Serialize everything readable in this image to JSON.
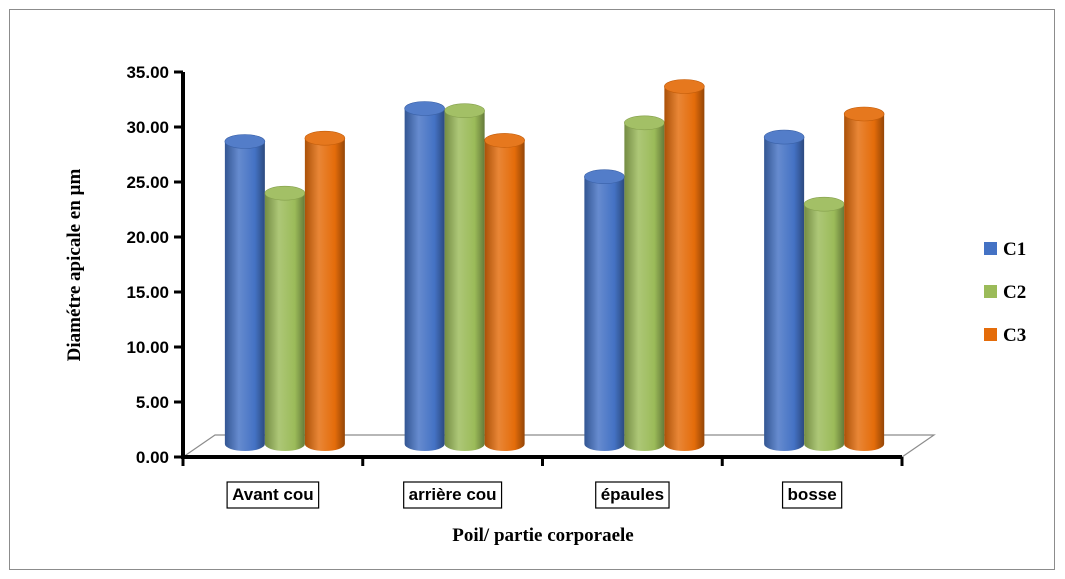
{
  "chart_data": {
    "type": "bar",
    "categories": [
      "Avant cou",
      "arrière cou",
      "épaules",
      "bosse"
    ],
    "series": [
      {
        "name": "C1",
        "values": [
          27.5,
          30.5,
          24.3,
          27.9
        ],
        "color": "#4472C4"
      },
      {
        "name": "C2",
        "values": [
          22.8,
          30.3,
          29.2,
          21.8
        ],
        "color": "#9BBB59"
      },
      {
        "name": "C3",
        "values": [
          27.8,
          27.6,
          32.5,
          30.0
        ],
        "color": "#E46C0A"
      }
    ],
    "xlabel": "Poil/ partie corporaele",
    "ylabel": "Diamétre apicale en µm",
    "ylim": [
      0,
      35
    ],
    "yticks": [
      "0.00",
      "5.00",
      "10.00",
      "15.00",
      "20.00",
      "25.00",
      "30.00",
      "35.00"
    ],
    "grid": false,
    "legend_position": "right",
    "style": "3d-cylinder"
  }
}
